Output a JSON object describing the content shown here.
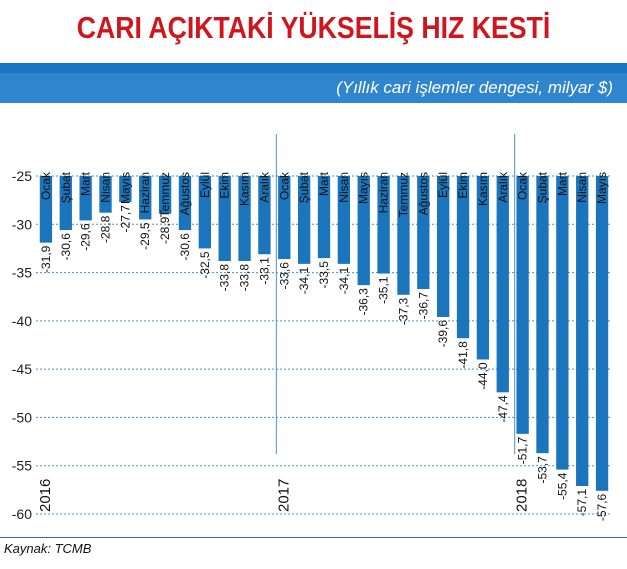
{
  "title": "CARI AÇIKTAKİ YÜKSELİŞ HIZ KESTİ",
  "subtitle": "(Yıllık cari işlemler dengesi, milyar $)",
  "source": "Kaynak: TCMB",
  "colors": {
    "bar": "#1b75bc",
    "title": "#d0161c",
    "banner": "#2f86cf"
  },
  "chart_data": {
    "type": "bar",
    "categories": [
      "Ocak",
      "Şubat",
      "Mart",
      "Nisan",
      "Mayıs",
      "Haziran",
      "Temmuz",
      "Ağustos",
      "Eylül",
      "Ekim",
      "Kasım",
      "Aralık",
      "Ocak",
      "Şubat",
      "Mart",
      "Nisan",
      "Mayıs",
      "Haziran",
      "Temmuz",
      "Ağustos",
      "Eylül",
      "Ekim",
      "Kasım",
      "Aralık",
      "Ocak",
      "Şubat",
      "Mart",
      "Nisan",
      "Mayıs"
    ],
    "values": [
      -31.9,
      -30.6,
      -29.6,
      -28.8,
      -27.7,
      -29.5,
      -28.9,
      -30.6,
      -32.5,
      -33.8,
      -33.8,
      -33.1,
      -33.6,
      -34.1,
      -33.5,
      -34.1,
      -36.3,
      -35.1,
      -37.3,
      -36.7,
      -39.6,
      -41.8,
      -44.0,
      -47.4,
      -51.7,
      -53.7,
      -55.4,
      -57.1,
      -57.6
    ],
    "value_labels": [
      "-31,9",
      "-30,6",
      "-29,6",
      "-28,8",
      "-27,7",
      "-29,5",
      "-28,9",
      "-30,6",
      "-32,5",
      "-33,8",
      "-33,8",
      "-33,1",
      "-33,6",
      "-34,1",
      "-33,5",
      "-34,1",
      "-36,3",
      "-35,1",
      "-37,3",
      "-36,7",
      "-39,6",
      "-41,8",
      "-44,0",
      "-47,4",
      "-51,7",
      "-53,7",
      "-55,4",
      "-57,1",
      "-57,6"
    ],
    "years": [
      {
        "label": "2016",
        "start_index": 0
      },
      {
        "label": "2017",
        "start_index": 12
      },
      {
        "label": "2018",
        "start_index": 24
      }
    ],
    "y_ticks": [
      "-25",
      "-30",
      "-35",
      "-40",
      "-45",
      "-50",
      "-55",
      "-60"
    ],
    "ylim": [
      -60,
      -25
    ],
    "grid": true
  }
}
